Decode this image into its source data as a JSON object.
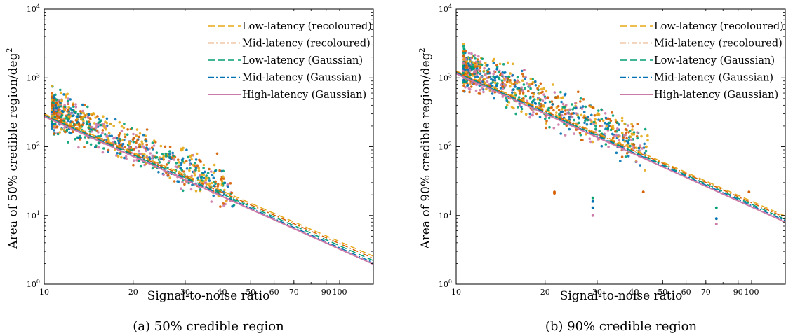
{
  "chart_data": [
    {
      "type": "scatter",
      "caption": "(a) 50% credible region",
      "xlabel": "Signal-to-noise ratio",
      "ylabel_main": "Area of 50% credible region/deg",
      "ylabel_sup": "2",
      "xscale": "log",
      "yscale": "log",
      "xlim": [
        10,
        130
      ],
      "ylim": [
        1,
        10000
      ],
      "grid": false,
      "legend_placement": "top-right",
      "x_ticks": [
        {
          "value": 10,
          "label": "10"
        },
        {
          "value": 20,
          "label": "20"
        },
        {
          "value": 30,
          "label": "30"
        },
        {
          "value": 40,
          "label": "40"
        },
        {
          "value": 50,
          "label": "50"
        },
        {
          "value": 60,
          "label": "60"
        },
        {
          "value": 70,
          "label": "70"
        },
        {
          "value": 90,
          "label": "90"
        },
        {
          "value": 100,
          "label": "100"
        }
      ],
      "y_ticks": [
        {
          "value": 1,
          "base": "10",
          "exp": "0"
        },
        {
          "value": 10,
          "base": "10",
          "exp": "1"
        },
        {
          "value": 100,
          "base": "10",
          "exp": "2"
        },
        {
          "value": 1000,
          "base": "10",
          "exp": "3"
        },
        {
          "value": 10000,
          "base": "10",
          "exp": "4"
        }
      ],
      "series": [
        {
          "name": "Low-latency (recoloured)",
          "color": "#E6A817",
          "style": "dashed",
          "line": [
            [
              10,
              300
            ],
            [
              130,
              2.55
            ]
          ]
        },
        {
          "name": "Mid-latency (recoloured)",
          "color": "#D55E00",
          "style": "dashdot",
          "line": [
            [
              10,
              290
            ],
            [
              130,
              2.38
            ]
          ]
        },
        {
          "name": "Low-latency (Gaussian)",
          "color": "#009E73",
          "style": "dashed",
          "line": [
            [
              10,
              285
            ],
            [
              130,
              2.2
            ]
          ]
        },
        {
          "name": "Mid-latency (Gaussian)",
          "color": "#0072B2",
          "style": "dashdot",
          "line": [
            [
              10,
              280
            ],
            [
              130,
              2.05
            ]
          ]
        },
        {
          "name": "High-latency (Gaussian)",
          "color": "#CC79A7",
          "style": "solid",
          "line": [
            [
              10,
              275
            ],
            [
              130,
              1.95
            ]
          ]
        }
      ]
    },
    {
      "type": "scatter",
      "caption": "(b) 90% credible region",
      "xlabel": "Signal-to-noise ratio",
      "ylabel_main": "Area of 90% credible region/deg",
      "ylabel_sup": "2",
      "xscale": "log",
      "yscale": "log",
      "xlim": [
        10,
        130
      ],
      "ylim": [
        1,
        10000
      ],
      "grid": false,
      "legend_placement": "top-right",
      "x_ticks": [
        {
          "value": 10,
          "label": "10"
        },
        {
          "value": 20,
          "label": "20"
        },
        {
          "value": 30,
          "label": "30"
        },
        {
          "value": 40,
          "label": "40"
        },
        {
          "value": 50,
          "label": "50"
        },
        {
          "value": 60,
          "label": "60"
        },
        {
          "value": 70,
          "label": "70"
        },
        {
          "value": 90,
          "label": "90"
        },
        {
          "value": 100,
          "label": "100"
        }
      ],
      "y_ticks": [
        {
          "value": 1,
          "base": "10",
          "exp": "0"
        },
        {
          "value": 10,
          "base": "10",
          "exp": "1"
        },
        {
          "value": 100,
          "base": "10",
          "exp": "2"
        },
        {
          "value": 1000,
          "base": "10",
          "exp": "3"
        },
        {
          "value": 10000,
          "base": "10",
          "exp": "4"
        }
      ],
      "series": [
        {
          "name": "Low-latency (recoloured)",
          "color": "#E6A817",
          "style": "dashed",
          "line": [
            [
              10,
              1260
            ],
            [
              130,
              9.8
            ]
          ]
        },
        {
          "name": "Mid-latency (recoloured)",
          "color": "#D55E00",
          "style": "dashdot",
          "line": [
            [
              10,
              1230
            ],
            [
              130,
              9.3
            ]
          ]
        },
        {
          "name": "Low-latency (Gaussian)",
          "color": "#009E73",
          "style": "dashed",
          "line": [
            [
              10,
              1200
            ],
            [
              130,
              8.8
            ]
          ]
        },
        {
          "name": "Mid-latency (Gaussian)",
          "color": "#0072B2",
          "style": "dashdot",
          "line": [
            [
              10,
              1180
            ],
            [
              130,
              8.4
            ]
          ]
        },
        {
          "name": "High-latency (Gaussian)",
          "color": "#CC79A7",
          "style": "solid",
          "line": [
            [
              10,
              1150
            ],
            [
              130,
              8.0
            ]
          ]
        }
      ],
      "outliers": [
        {
          "x": 21.5,
          "y": 22,
          "color": "#D55E00"
        },
        {
          "x": 21.5,
          "y": 21,
          "color": "#D55E00"
        },
        {
          "x": 29,
          "y": 18,
          "color": "#009E73"
        },
        {
          "x": 29,
          "y": 16,
          "color": "#0072B2"
        },
        {
          "x": 29,
          "y": 13,
          "color": "#0072B2"
        },
        {
          "x": 29,
          "y": 10,
          "color": "#CC79A7"
        },
        {
          "x": 76,
          "y": 13,
          "color": "#009E73"
        },
        {
          "x": 76,
          "y": 9,
          "color": "#0072B2"
        },
        {
          "x": 76,
          "y": 7.5,
          "color": "#CC79A7"
        },
        {
          "x": 43,
          "y": 22,
          "color": "#D55E00"
        },
        {
          "x": 44,
          "y": 100,
          "color": "#E6A817"
        },
        {
          "x": 98,
          "y": 22,
          "color": "#D55E00"
        },
        {
          "x": 17,
          "y": 1300,
          "color": "#CC79A7"
        }
      ]
    }
  ]
}
